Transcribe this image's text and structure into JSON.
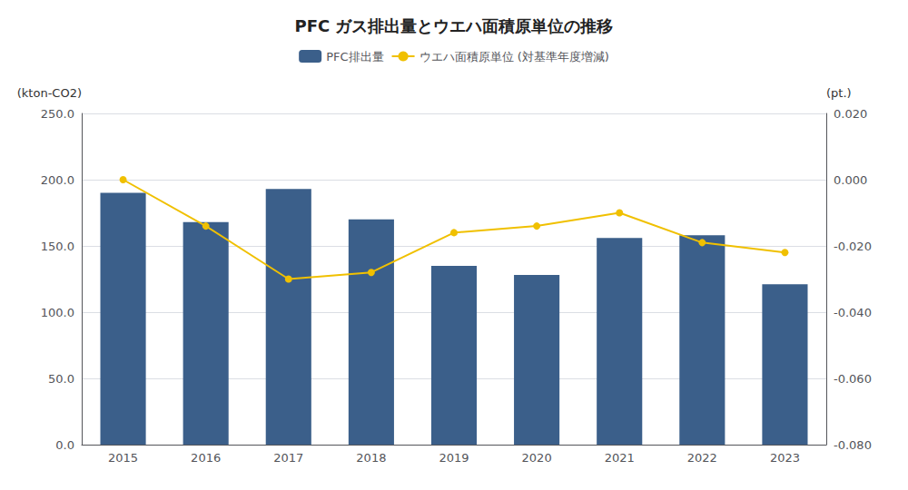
{
  "chart_data": {
    "type": "bar",
    "title": "PFC ガス排出量とウエハ面積原単位の推移",
    "categories": [
      2015,
      2016,
      2017,
      2018,
      2019,
      2020,
      2021,
      2022,
      2023
    ],
    "series": [
      {
        "name": "PFC排出量",
        "type": "bar",
        "color": "#3b5f8a",
        "axis": "y",
        "values": [
          190.0,
          168.0,
          193.0,
          170.0,
          135.0,
          128.0,
          156.0,
          158.0,
          121.0
        ]
      },
      {
        "name": "ウエハ面積原単位 (対基準年度増減)",
        "type": "line",
        "color": "#f0c000",
        "axis": "y2",
        "marker": "circle",
        "values": [
          0.0,
          -0.014,
          -0.03,
          -0.028,
          -0.016,
          -0.014,
          -0.01,
          -0.019,
          -0.022
        ]
      }
    ],
    "ylabel": "(kton-CO2)",
    "y2label": "(pt.)",
    "ylim": [
      0.0,
      250.0
    ],
    "yticks": [
      {
        "value": 0.0,
        "label": "0.0"
      },
      {
        "value": 50.0,
        "label": "50.0"
      },
      {
        "value": 100.0,
        "label": "100.0"
      },
      {
        "value": 150.0,
        "label": "150.0"
      },
      {
        "value": 200.0,
        "label": "200.0"
      },
      {
        "value": 250.0,
        "label": "250.0"
      }
    ],
    "y2lim": [
      -0.08,
      0.02
    ],
    "y2ticks": [
      {
        "value": -0.08,
        "label": "-0.080"
      },
      {
        "value": -0.06,
        "label": "-0.060"
      },
      {
        "value": -0.04,
        "label": "-0.040"
      },
      {
        "value": -0.02,
        "label": "-0.020"
      },
      {
        "value": 0.0,
        "label": "0.000"
      },
      {
        "value": 0.02,
        "label": "0.020"
      }
    ],
    "grid": true,
    "legend": "top"
  }
}
